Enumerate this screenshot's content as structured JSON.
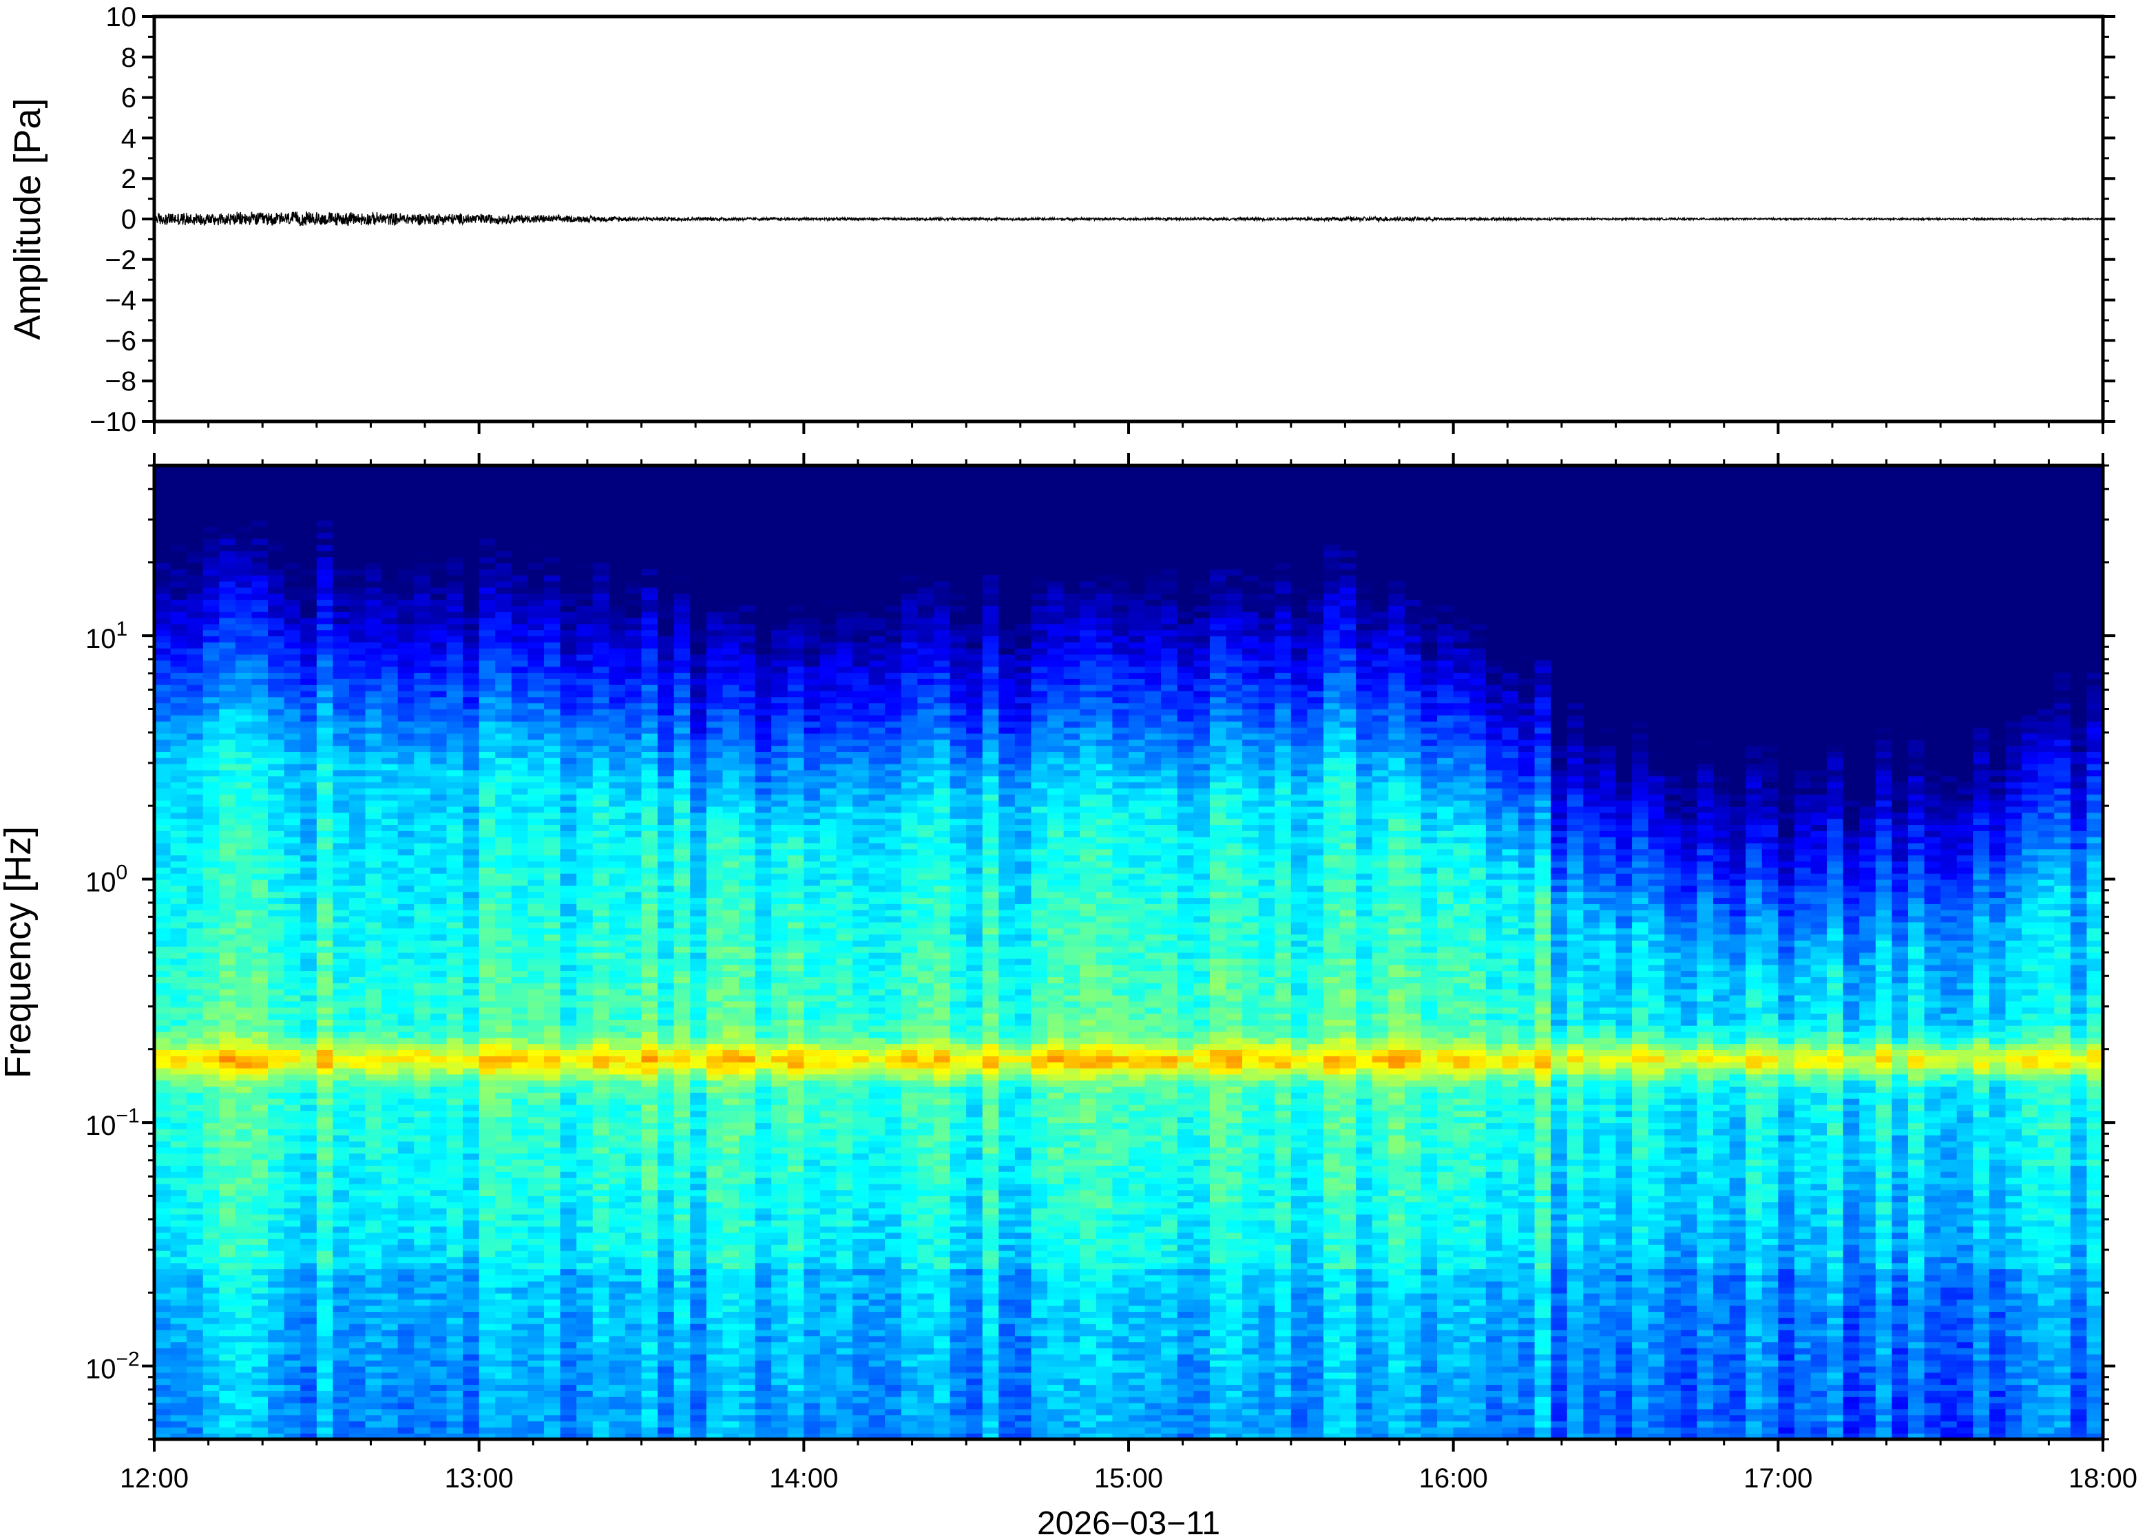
{
  "chart_data": [
    {
      "type": "line",
      "title": "",
      "ylabel": "Amplitude [Pa]",
      "ylim": [
        -10,
        10
      ],
      "yticks": [
        10,
        8,
        6,
        4,
        2,
        0,
        -2,
        -4,
        -6,
        -8,
        -10
      ],
      "ytick_labels": [
        "10",
        "8",
        "6",
        "4",
        "2",
        "0",
        "−2",
        "−4",
        "−6",
        "−8",
        "−10"
      ],
      "xlim": [
        "12:00",
        "18:00"
      ],
      "series": [
        {
          "color": "#000000",
          "envelope_hours": [
            0,
            0.5,
            1,
            1.25,
            1.5,
            2,
            2.5,
            3,
            3.5,
            3.8,
            4,
            4.5,
            5,
            5.5,
            6
          ],
          "envelope_pa": [
            0.35,
            0.4,
            0.3,
            0.2,
            0.12,
            0.08,
            0.08,
            0.07,
            0.09,
            0.14,
            0.08,
            0.06,
            0.05,
            0.05,
            0.05
          ]
        }
      ]
    },
    {
      "type": "heatmap",
      "title": "",
      "xlabel": "2026−03−11",
      "ylabel": "Frequency [Hz]",
      "yscale": "log",
      "ylim_hz": [
        0.005,
        50
      ],
      "xticks": [
        "12:00",
        "13:00",
        "14:00",
        "15:00",
        "16:00",
        "17:00",
        "18:00"
      ],
      "yticks": [
        {
          "base": "10",
          "exp": "1"
        },
        {
          "base": "10",
          "exp": "0"
        },
        {
          "base": "10",
          "exp": "−1"
        },
        {
          "base": "10",
          "exp": "−2"
        }
      ],
      "colormap": "jet",
      "colormap_stops": [
        "#00007f",
        "#0000ff",
        "#007fff",
        "#00ffff",
        "#7fff7f",
        "#ffff00",
        "#ff7f00"
      ],
      "notable_band_hz": 0.18,
      "ceiling_hours": [
        0,
        0.5,
        1,
        1.3,
        1.4,
        1.6,
        1.7,
        2,
        2.2,
        2.5,
        3,
        3.2,
        3.5,
        3.65,
        3.8,
        4,
        4.3,
        4.6,
        5,
        5.5,
        5.9,
        6
      ],
      "ceiling_hz": [
        25,
        25,
        22,
        20,
        16,
        16,
        11,
        11,
        15,
        15,
        15,
        16,
        17,
        20,
        14,
        11,
        6,
        4,
        3,
        4,
        7,
        8
      ]
    }
  ]
}
